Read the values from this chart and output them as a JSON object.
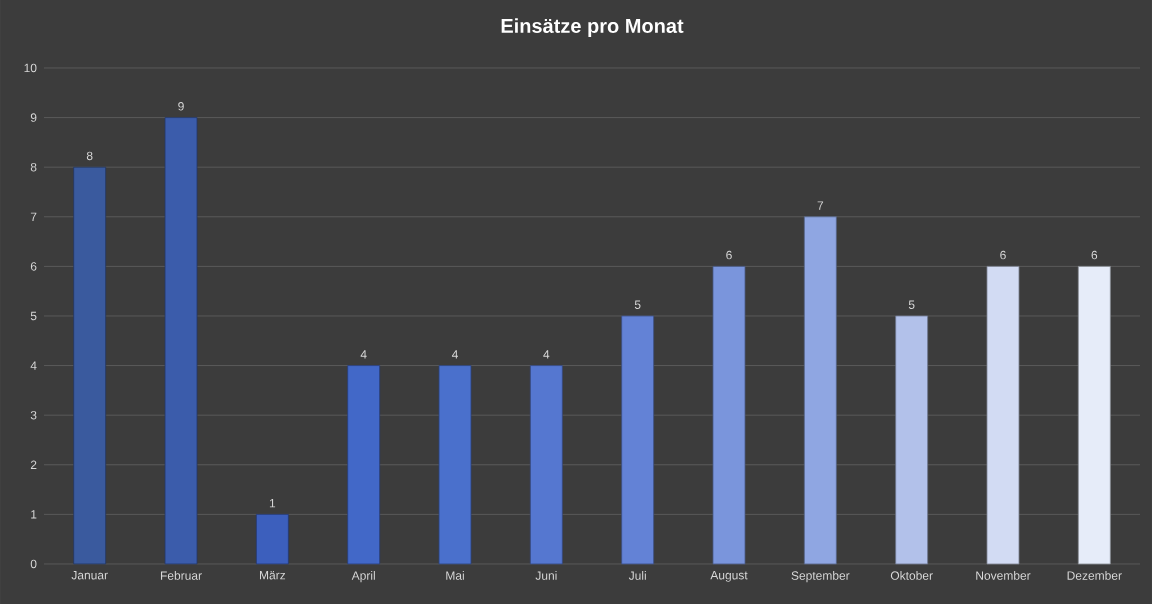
{
  "chart_data": {
    "type": "bar",
    "title": "Einsätze pro Monat",
    "categories": [
      "Januar",
      "Februar",
      "März",
      "April",
      "Mai",
      "Juni",
      "Juli",
      "August",
      "September",
      "Oktober",
      "November",
      "Dezember"
    ],
    "values": [
      8,
      9,
      1,
      4,
      4,
      4,
      5,
      6,
      7,
      5,
      6,
      6
    ],
    "colors": [
      "#3a5a9e",
      "#3b5cab",
      "#3c5fbd",
      "#4268c8",
      "#4a70cc",
      "#5577d0",
      "#6382d6",
      "#7a95dc",
      "#8fa6e2",
      "#b2c1ea",
      "#d2dbf3",
      "#e6ecf9"
    ],
    "ylim": [
      0,
      10
    ],
    "yticks": [
      0,
      1,
      2,
      3,
      4,
      5,
      6,
      7,
      8,
      9,
      10
    ],
    "grid": "y",
    "data_labels": true
  }
}
